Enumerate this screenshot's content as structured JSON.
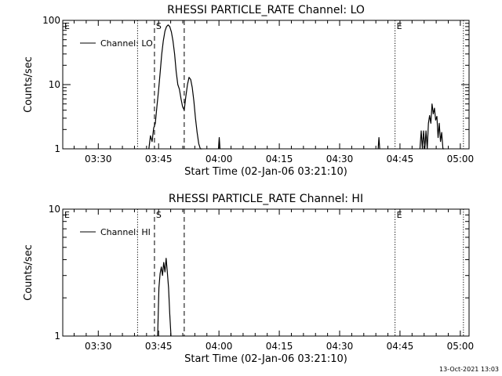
{
  "footer": {
    "timestamp": "13-Oct-2021 13:03"
  },
  "chart_data": [
    {
      "type": "line",
      "title": "RHESSI PARTICLE_RATE Channel: LO",
      "xlabel": "Start Time (02-Jan-06 03:21:10)",
      "ylabel": "Counts/sec",
      "x_unit": "minutes after 03:21:10",
      "xlim": [
        0,
        101
      ],
      "ylim": [
        1,
        100
      ],
      "ylog": true,
      "x_ticks": [
        {
          "x": 8.83,
          "label": "03:30"
        },
        {
          "x": 23.83,
          "label": "03:45"
        },
        {
          "x": 38.83,
          "label": "04:00"
        },
        {
          "x": 53.83,
          "label": "04:15"
        },
        {
          "x": 68.83,
          "label": "04:30"
        },
        {
          "x": 83.83,
          "label": "04:45"
        },
        {
          "x": 98.83,
          "label": "05:00"
        }
      ],
      "y_ticks": [
        {
          "y": 1,
          "label": "1"
        },
        {
          "y": 10,
          "label": "10"
        },
        {
          "y": 100,
          "label": "100"
        }
      ],
      "legend": {
        "label": "Channel: LO",
        "position": "top-left"
      },
      "markers": [
        {
          "x": 0,
          "style": "dotted",
          "label": "E"
        },
        {
          "x": 18.6,
          "style": "dotted",
          "label": ""
        },
        {
          "x": 22.8,
          "style": "dashed",
          "label": "S"
        },
        {
          "x": 30.2,
          "style": "dashed",
          "label": ""
        },
        {
          "x": 82.6,
          "style": "dotted",
          "label": "E"
        },
        {
          "x": 99.6,
          "style": "dotted",
          "label": ""
        }
      ],
      "series": [
        {
          "segments": [
            {
              "x": [
                21.4,
                21.8,
                22.2,
                22.6,
                23.0,
                23.4,
                23.8,
                24.2,
                24.6,
                25.0,
                25.4,
                25.8,
                26.2,
                26.6,
                27.0,
                27.4,
                27.8,
                28.2,
                28.6,
                29.0,
                29.4,
                29.8,
                30.2,
                30.6,
                31.0,
                31.4,
                31.8,
                32.2,
                32.6,
                33.0,
                33.4,
                33.8,
                34.2,
                34.6
              ],
              "y": [
                1.0,
                1.6,
                1.3,
                2.1,
                2.5,
                4.5,
                8.0,
                15,
                30,
                48,
                68,
                80,
                85,
                80,
                66,
                48,
                30,
                16,
                10,
                8.5,
                6.0,
                4.5,
                4.0,
                6.5,
                10,
                13,
                12,
                9.0,
                5.5,
                3.0,
                1.8,
                1.2,
                1.0,
                1.0
              ]
            },
            {
              "x": [
                38.7,
                38.9,
                39.1
              ],
              "y": [
                1.0,
                1.5,
                1.0
              ]
            },
            {
              "x": [
                78.4,
                78.6,
                78.8
              ],
              "y": [
                1.0,
                1.5,
                1.0
              ]
            },
            {
              "x": [
                88.8,
                89.1,
                89.4,
                89.7,
                90.0,
                90.3,
                90.6,
                90.9,
                91.2,
                91.5,
                91.8,
                92.1,
                92.4,
                92.7,
                93.0,
                93.3,
                93.6,
                93.9,
                94.2,
                94.5,
                94.8
              ],
              "y": [
                1.0,
                1.9,
                1.0,
                1.9,
                1.0,
                1.9,
                1.0,
                2.5,
                3.3,
                2.5,
                5.0,
                3.5,
                4.3,
                2.8,
                3.2,
                1.5,
                2.5,
                1.3,
                1.8,
                1.0,
                1.0
              ]
            }
          ]
        }
      ]
    },
    {
      "type": "line",
      "title": "RHESSI PARTICLE_RATE Channel: HI",
      "xlabel": "Start Time (02-Jan-06 03:21:10)",
      "ylabel": "Counts/sec",
      "x_unit": "minutes after 03:21:10",
      "xlim": [
        0,
        101
      ],
      "ylim": [
        1,
        10
      ],
      "ylog": true,
      "x_ticks": [
        {
          "x": 8.83,
          "label": "03:30"
        },
        {
          "x": 23.83,
          "label": "03:45"
        },
        {
          "x": 38.83,
          "label": "04:00"
        },
        {
          "x": 53.83,
          "label": "04:15"
        },
        {
          "x": 68.83,
          "label": "04:30"
        },
        {
          "x": 83.83,
          "label": "04:45"
        },
        {
          "x": 98.83,
          "label": "05:00"
        }
      ],
      "y_ticks": [
        {
          "y": 1,
          "label": "1"
        },
        {
          "y": 10,
          "label": "10"
        }
      ],
      "legend": {
        "label": "Channel: HI",
        "position": "top-left"
      },
      "markers": [
        {
          "x": 0,
          "style": "dotted",
          "label": "E"
        },
        {
          "x": 18.6,
          "style": "dotted",
          "label": ""
        },
        {
          "x": 22.8,
          "style": "dashed",
          "label": "S"
        },
        {
          "x": 30.2,
          "style": "dashed",
          "label": ""
        },
        {
          "x": 82.6,
          "style": "dotted",
          "label": "E"
        },
        {
          "x": 99.6,
          "style": "dotted",
          "label": ""
        }
      ],
      "series": [
        {
          "segments": [
            {
              "x": [
                23.6,
                23.9,
                24.2,
                24.5,
                24.8,
                25.1,
                25.4,
                25.7,
                26.0,
                26.3,
                26.6,
                26.9
              ],
              "y": [
                1.0,
                2.4,
                3.1,
                3.5,
                3.0,
                3.8,
                3.2,
                4.1,
                3.2,
                2.4,
                1.5,
                1.0
              ]
            }
          ]
        }
      ]
    }
  ]
}
